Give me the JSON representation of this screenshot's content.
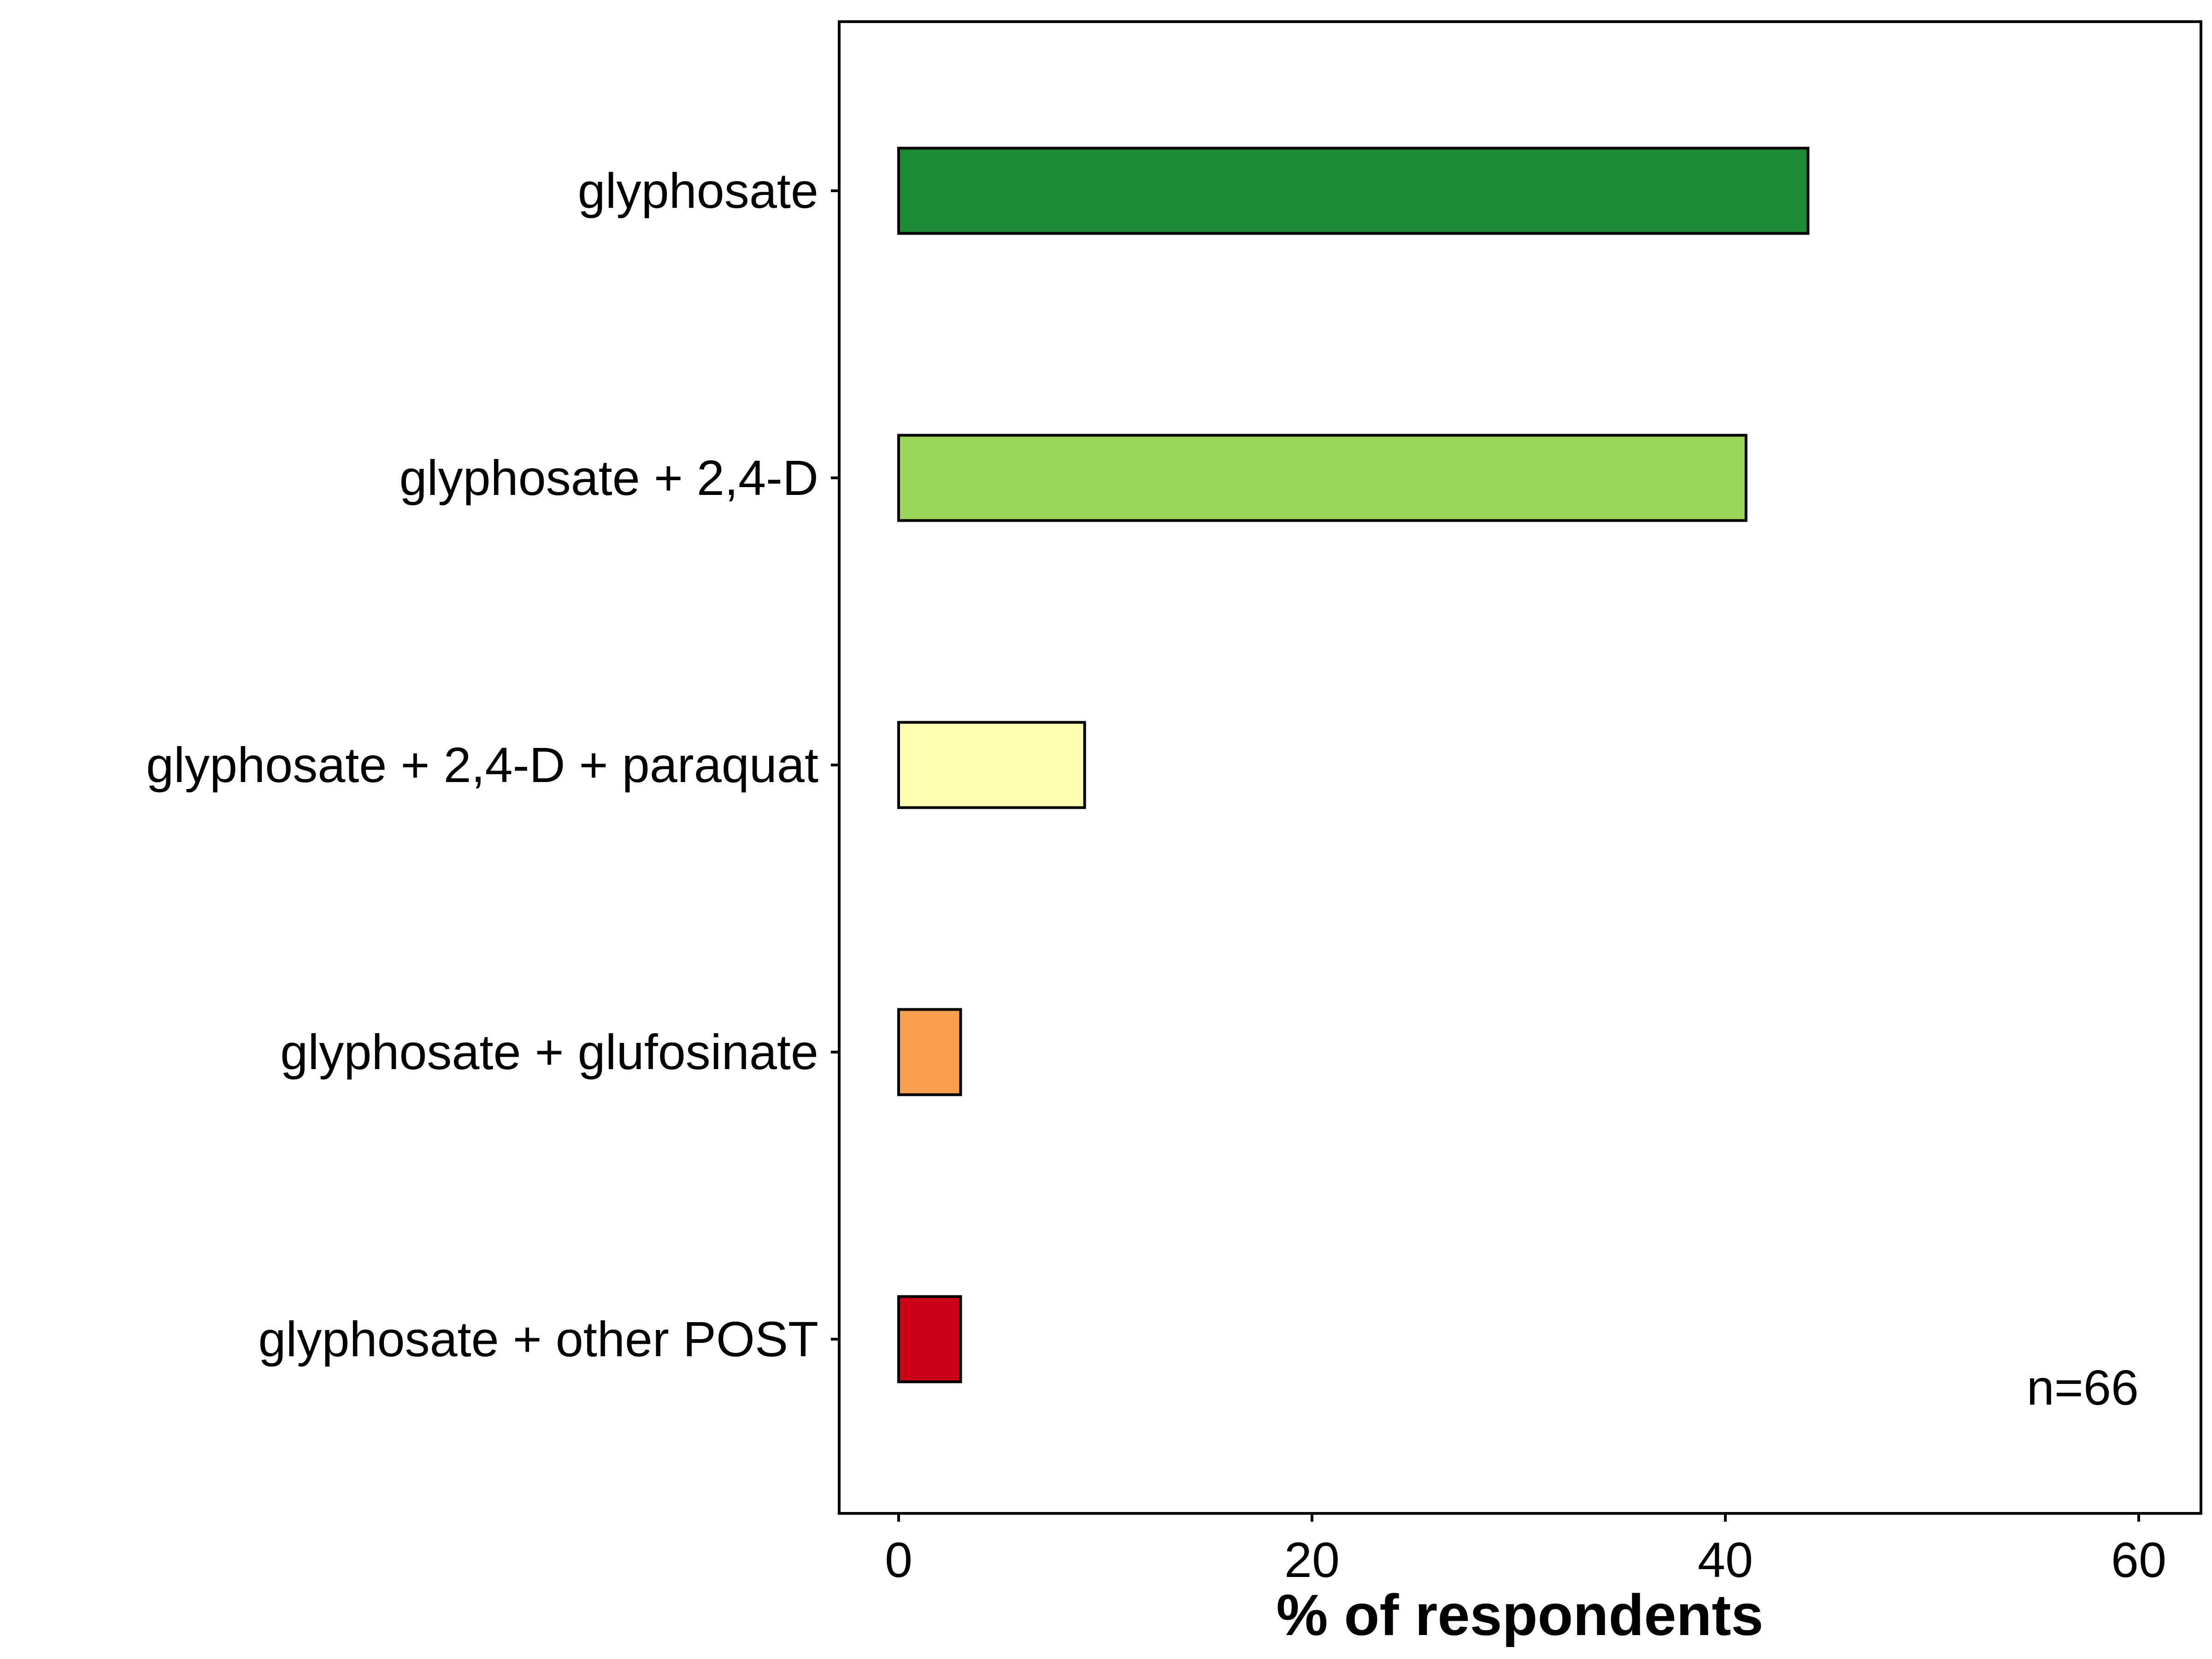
{
  "chart_data": {
    "type": "bar",
    "orientation": "horizontal",
    "categories": [
      "glyphosate",
      "glyphosate + 2,4-D",
      "glyphosate + 2,4-D + paraquat",
      "glyphosate + glufosinate",
      "glyphosate + other POST"
    ],
    "values": [
      44,
      41,
      9,
      3,
      3
    ],
    "colors": [
      "#1e8a35",
      "#9bd65b",
      "#ffffb2",
      "#fa9e4f",
      "#cc0018"
    ],
    "title": "",
    "xlabel": "% of respondents",
    "ylabel": "",
    "xlim": [
      -3,
      63
    ],
    "xticks": [
      0,
      20,
      40,
      60
    ],
    "grid": false,
    "legend": "none",
    "annotation": "n=66"
  }
}
